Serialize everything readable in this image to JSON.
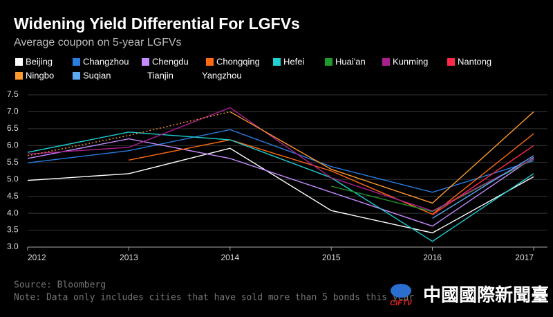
{
  "chart_data": {
    "type": "line",
    "title": "Widening Yield Differential For LGFVs",
    "subtitle": "Average coupon on 5-year LGFVs",
    "categories": [
      "2012",
      "2013",
      "2014",
      "2015",
      "2016",
      "2017"
    ],
    "series": [
      {
        "name": "Beijing",
        "color": "#ffffff",
        "values": [
          4.97,
          5.17,
          5.92,
          4.08,
          3.42,
          5.08
        ]
      },
      {
        "name": "Changzhou",
        "color": "#2a7de1",
        "values": [
          5.49,
          5.85,
          6.47,
          5.38,
          4.62,
          5.55
        ]
      },
      {
        "name": "Chengdu",
        "color": "#c48cff",
        "values": [
          5.62,
          6.2,
          5.62,
          4.62,
          3.62,
          5.65
        ]
      },
      {
        "name": "Chongqing",
        "color": "#ff6a13",
        "values": [
          null,
          5.57,
          6.17,
          5.25,
          3.97,
          6.35
        ]
      },
      {
        "name": "Hefei",
        "color": "#1fd1d1",
        "values": [
          5.8,
          6.4,
          6.17,
          5.05,
          3.17,
          5.17
        ]
      },
      {
        "name": "Huai'an",
        "color": "#1f9a2e",
        "values": [
          null,
          null,
          null,
          4.8,
          4.05,
          5.6
        ]
      },
      {
        "name": "Kunming",
        "color": "#a8208e",
        "values": [
          5.75,
          5.95,
          7.12,
          5.05,
          4.07,
          5.62
        ]
      },
      {
        "name": "Nantong",
        "color": "#ff2a4a",
        "values": [
          null,
          null,
          null,
          null,
          3.95,
          6.0
        ]
      },
      {
        "name": "Ningbo",
        "color": "#ff9a2e",
        "dashed_until_index": 2,
        "values": [
          5.7,
          6.3,
          7.0,
          5.3,
          4.3,
          7.0
        ]
      },
      {
        "name": "Suqian",
        "color": "#5aaaf5",
        "values": [
          null,
          null,
          null,
          null,
          3.85,
          5.7
        ]
      },
      {
        "name": "Tianjin",
        "color": "#000000",
        "values": [
          null,
          null,
          null,
          null,
          null,
          null
        ]
      },
      {
        "name": "Yangzhou",
        "color": "#000000",
        "values": [
          null,
          null,
          null,
          null,
          null,
          null
        ]
      }
    ],
    "ylim": [
      3.0,
      7.5
    ],
    "yticks": [
      {
        "value": 3.0,
        "label": "3.0"
      },
      3.5,
      {
        "value": 4.0,
        "label": "4.0"
      },
      4.5,
      {
        "value": 5.0,
        "label": "5.0"
      },
      5.5,
      {
        "value": 6.0,
        "label": "6.0"
      },
      6.5,
      {
        "value": 7.0,
        "label": "7.0"
      },
      7.5
    ],
    "grid": true,
    "source": "Source: Bloomberg",
    "note": "Note: Data only includes cities that have sold more than 5 bonds this year",
    "logo_text": "CIFTV",
    "logo_chinese": "中國國際新聞臺"
  }
}
